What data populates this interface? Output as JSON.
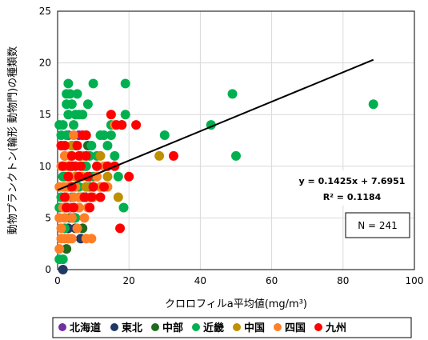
{
  "chart_data": {
    "type": "scatter",
    "xlabel": "クロロフィルa平均値(mg/m³)",
    "ylabel": "動物プランクトン(輪形 動物門)の種類数",
    "xlim": [
      0,
      100
    ],
    "ylim": [
      0,
      25
    ],
    "xticks": [
      "0",
      "20",
      "40",
      "60",
      "80",
      "100"
    ],
    "yticks": [
      "0",
      "5",
      "10",
      "15",
      "20",
      "25"
    ],
    "grid": true,
    "legend_position": "bottom",
    "trendline": {
      "slope": 0.1425,
      "intercept": 7.6951,
      "x_range": [
        0,
        88.5
      ]
    },
    "equation_label": "y = 0.1425x + 7.6951",
    "r2_label": "R² = 0.1184",
    "n_label": "N = 241",
    "series": [
      {
        "name": "北海道",
        "color": "#7030a0",
        "points": [
          [
            2,
            6
          ],
          [
            3,
            13
          ],
          [
            3.5,
            6
          ],
          [
            5,
            9
          ],
          [
            6,
            13
          ]
        ]
      },
      {
        "name": "東北",
        "color": "#1f3864",
        "points": [
          [
            1.5,
            0
          ],
          [
            3,
            4
          ],
          [
            5,
            4
          ],
          [
            6.5,
            3
          ],
          [
            7,
            7
          ],
          [
            8,
            7
          ],
          [
            9,
            9
          ],
          [
            4,
            10
          ]
        ]
      },
      {
        "name": "中部",
        "color": "#1e6b1e",
        "points": [
          [
            2.5,
            2
          ],
          [
            3.5,
            5
          ],
          [
            4.5,
            5
          ],
          [
            6,
            6
          ],
          [
            7,
            4
          ],
          [
            8,
            8
          ],
          [
            8.5,
            12
          ]
        ]
      },
      {
        "name": "近畿",
        "color": "#00b050",
        "points": [
          [
            0.5,
            1
          ],
          [
            1.5,
            1
          ],
          [
            0.5,
            14
          ],
          [
            1,
            13
          ],
          [
            1.5,
            14
          ],
          [
            2,
            9
          ],
          [
            2,
            11
          ],
          [
            2.5,
            13
          ],
          [
            2.5,
            16
          ],
          [
            2.5,
            17
          ],
          [
            3,
            15
          ],
          [
            3,
            18
          ],
          [
            3.5,
            17
          ],
          [
            4,
            16
          ],
          [
            4,
            12
          ],
          [
            4.5,
            14
          ],
          [
            5,
            12
          ],
          [
            5,
            15
          ],
          [
            5.5,
            17
          ],
          [
            6,
            15
          ],
          [
            6.5,
            11
          ],
          [
            7,
            15
          ],
          [
            7.5,
            10
          ],
          [
            8,
            13
          ],
          [
            8.5,
            16
          ],
          [
            9,
            11
          ],
          [
            9.5,
            12
          ],
          [
            10,
            18
          ],
          [
            10,
            9
          ],
          [
            11,
            11
          ],
          [
            12,
            13
          ],
          [
            13,
            13
          ],
          [
            14,
            12
          ],
          [
            15,
            13
          ],
          [
            15,
            14
          ],
          [
            16,
            11
          ],
          [
            17,
            9
          ],
          [
            18,
            14
          ],
          [
            19,
            15
          ],
          [
            19,
            18
          ],
          [
            18.5,
            6
          ],
          [
            30,
            13
          ],
          [
            43,
            14
          ],
          [
            49,
            17
          ],
          [
            50,
            11
          ],
          [
            88.5,
            16
          ],
          [
            0.5,
            6
          ],
          [
            1,
            7
          ],
          [
            1.5,
            9
          ],
          [
            2,
            4
          ],
          [
            3,
            3
          ],
          [
            3.5,
            8
          ],
          [
            4,
            7
          ],
          [
            5,
            5
          ],
          [
            6,
            8
          ],
          [
            7,
            7
          ],
          [
            8,
            10
          ],
          [
            9,
            8
          ],
          [
            12,
            8
          ]
        ]
      },
      {
        "name": "中国",
        "color": "#bf9000",
        "points": [
          [
            2,
            8
          ],
          [
            3,
            10
          ],
          [
            4,
            12
          ],
          [
            5,
            9
          ],
          [
            6,
            7
          ],
          [
            7,
            11
          ],
          [
            8,
            8
          ],
          [
            10,
            8
          ],
          [
            12,
            11
          ],
          [
            14,
            9
          ],
          [
            17,
            7
          ],
          [
            28.5,
            11
          ]
        ]
      },
      {
        "name": "四国",
        "color": "#ff7f27",
        "points": [
          [
            0.5,
            8
          ],
          [
            0.5,
            5
          ],
          [
            1,
            3
          ],
          [
            1,
            4
          ],
          [
            1.5,
            6
          ],
          [
            1.5,
            8
          ],
          [
            2,
            3
          ],
          [
            2,
            5
          ],
          [
            2.5,
            7
          ],
          [
            2.5,
            10
          ],
          [
            3,
            3
          ],
          [
            3,
            6
          ],
          [
            3,
            8
          ],
          [
            3.5,
            9
          ],
          [
            4,
            3
          ],
          [
            4,
            5
          ],
          [
            4.5,
            7
          ],
          [
            5,
            8
          ],
          [
            5.5,
            4
          ],
          [
            6,
            6
          ],
          [
            6.5,
            7
          ],
          [
            7,
            9
          ],
          [
            7.5,
            5
          ],
          [
            8,
            3
          ],
          [
            8.5,
            6
          ],
          [
            9,
            7
          ],
          [
            9.5,
            3
          ],
          [
            10,
            7
          ],
          [
            11,
            9
          ],
          [
            12,
            8
          ],
          [
            13,
            10
          ],
          [
            14,
            8
          ],
          [
            16,
            14
          ],
          [
            0.5,
            2
          ],
          [
            1,
            10
          ],
          [
            2,
            11
          ],
          [
            3.5,
            11
          ],
          [
            4.5,
            13
          ]
        ]
      },
      {
        "name": "九州",
        "color": "#ff0000",
        "points": [
          [
            1,
            12
          ],
          [
            1.5,
            10
          ],
          [
            2,
            7
          ],
          [
            2.5,
            6
          ],
          [
            3,
            9
          ],
          [
            3.5,
            10
          ],
          [
            4,
            8
          ],
          [
            4.5,
            6
          ],
          [
            5,
            10
          ],
          [
            5.5,
            12
          ],
          [
            6,
            9
          ],
          [
            6.5,
            10
          ],
          [
            7,
            13
          ],
          [
            7.5,
            7
          ],
          [
            8,
            13
          ],
          [
            8.5,
            9
          ],
          [
            9,
            6
          ],
          [
            9.5,
            7
          ],
          [
            10,
            8
          ],
          [
            11,
            10
          ],
          [
            12,
            7
          ],
          [
            13,
            8
          ],
          [
            14,
            10
          ],
          [
            15,
            15
          ],
          [
            16,
            10
          ],
          [
            16.5,
            14
          ],
          [
            17.5,
            4
          ],
          [
            18,
            14
          ],
          [
            20,
            9
          ],
          [
            22,
            14
          ],
          [
            32.5,
            11
          ],
          [
            2,
            12
          ],
          [
            4,
            11
          ],
          [
            6,
            11
          ],
          [
            8,
            11
          ]
        ]
      }
    ]
  }
}
